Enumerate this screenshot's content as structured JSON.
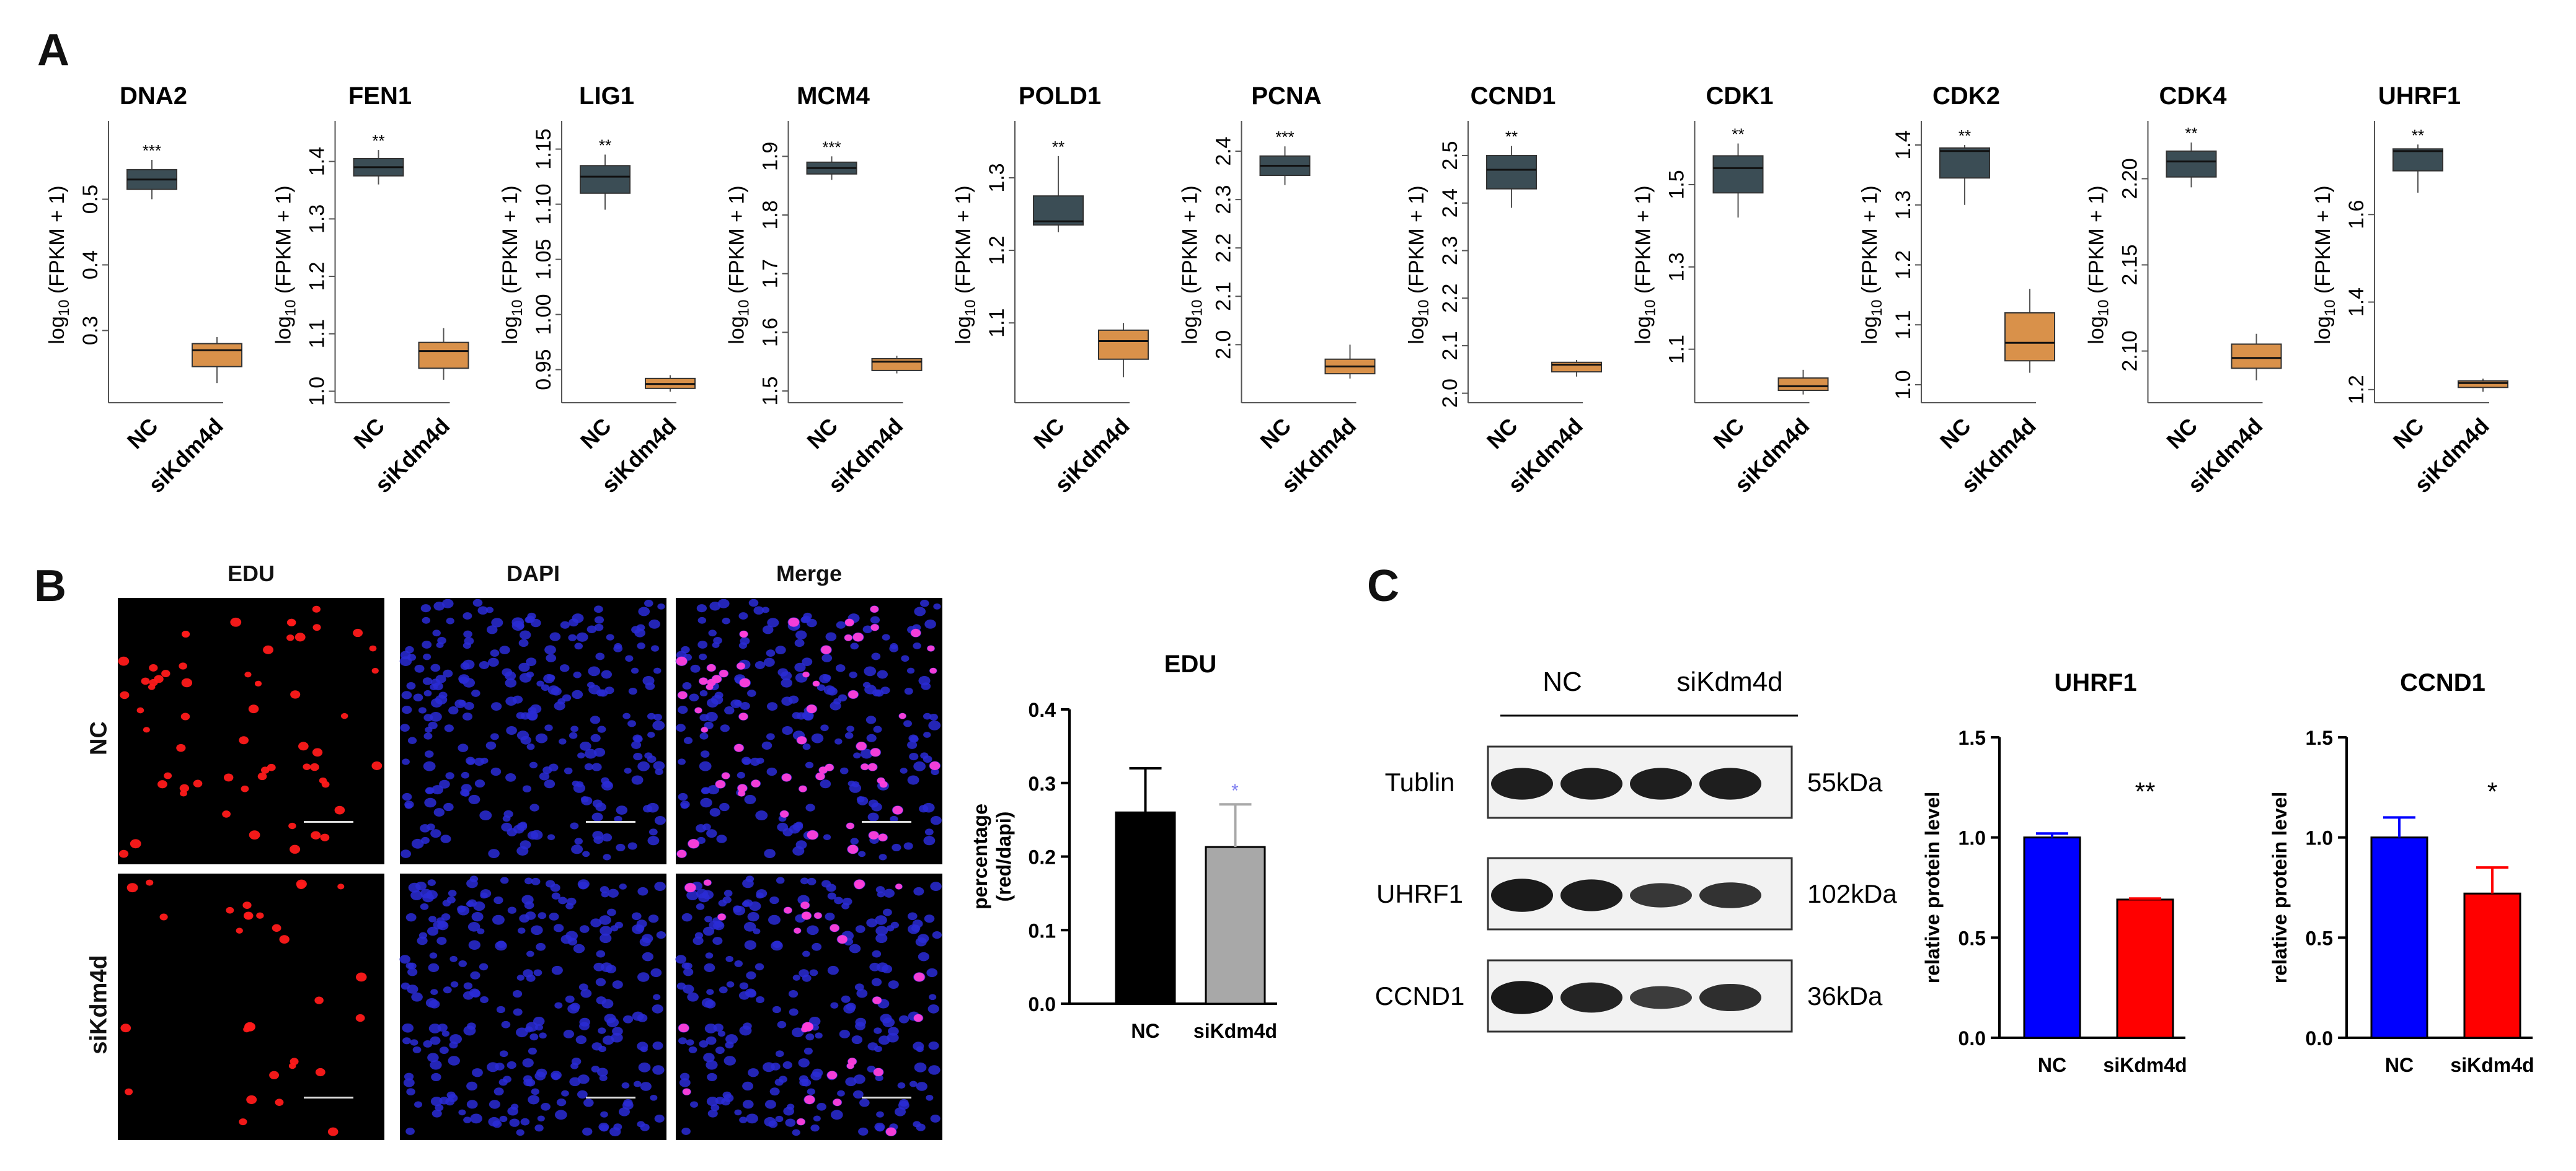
{
  "panels": {
    "a": "A",
    "b": "B",
    "c": "C"
  },
  "panelA": {
    "ylabel_prefix": "log",
    "ylabel_sub": "10",
    "ylabel_suffix": "(FPKM + 1)",
    "groups": [
      "NC",
      "siKdm4d"
    ],
    "colors": {
      "nc": "#3b4d55",
      "si": "#d9914a"
    },
    "plots": [
      {
        "title": "DNA2",
        "sig": "***",
        "ylim": [
          0.19,
          0.61
        ],
        "ticks": [
          0.3,
          0.4,
          0.5
        ],
        "tick_labels": [
          "0.3",
          "0.4",
          "0.5"
        ],
        "nc": {
          "min": 0.5,
          "q1": 0.515,
          "med": 0.53,
          "q3": 0.545,
          "max": 0.56
        },
        "si": {
          "min": 0.22,
          "q1": 0.245,
          "med": 0.27,
          "q3": 0.28,
          "max": 0.29
        }
      },
      {
        "title": "FEN1",
        "sig": "**",
        "ylim": [
          0.98,
          1.46
        ],
        "ticks": [
          1.0,
          1.1,
          1.2,
          1.3,
          1.4
        ],
        "tick_labels": [
          "1.0",
          "1.1",
          "1.2",
          "1.3",
          "1.4"
        ],
        "nc": {
          "min": 1.36,
          "q1": 1.375,
          "med": 1.39,
          "q3": 1.405,
          "max": 1.42
        },
        "si": {
          "min": 1.02,
          "q1": 1.04,
          "med": 1.07,
          "q3": 1.085,
          "max": 1.11
        }
      },
      {
        "title": "LIG1",
        "sig": "**",
        "ylim": [
          0.92,
          1.17
        ],
        "ticks": [
          0.95,
          1.0,
          1.05,
          1.1,
          1.15
        ],
        "tick_labels": [
          "0.95",
          "1.00",
          "1.05",
          "1.10",
          "1.15"
        ],
        "nc": {
          "min": 1.095,
          "q1": 1.11,
          "med": 1.125,
          "q3": 1.135,
          "max": 1.145
        },
        "si": {
          "min": 0.93,
          "q1": 0.933,
          "med": 0.937,
          "q3": 0.942,
          "max": 0.945
        }
      },
      {
        "title": "MCM4",
        "sig": "***",
        "ylim": [
          1.48,
          1.95
        ],
        "ticks": [
          1.5,
          1.6,
          1.7,
          1.8,
          1.9
        ],
        "tick_labels": [
          "1.5",
          "1.6",
          "1.7",
          "1.8",
          "1.9"
        ],
        "nc": {
          "min": 1.86,
          "q1": 1.87,
          "med": 1.88,
          "q3": 1.89,
          "max": 1.9
        },
        "si": {
          "min": 1.53,
          "q1": 1.535,
          "med": 1.55,
          "q3": 1.555,
          "max": 1.56
        }
      },
      {
        "title": "POLD1",
        "sig": "**",
        "ylim": [
          0.99,
          1.37
        ],
        "ticks": [
          1.1,
          1.2,
          1.3
        ],
        "tick_labels": [
          "1.1",
          "1.2",
          "1.3"
        ],
        "nc": {
          "min": 1.225,
          "q1": 1.235,
          "med": 1.24,
          "q3": 1.275,
          "max": 1.33
        },
        "si": {
          "min": 1.025,
          "q1": 1.05,
          "med": 1.075,
          "q3": 1.09,
          "max": 1.1
        }
      },
      {
        "title": "PCNA",
        "sig": "***",
        "ylim": [
          1.88,
          2.45
        ],
        "ticks": [
          2.0,
          2.1,
          2.2,
          2.3,
          2.4
        ],
        "tick_labels": [
          "2.0",
          "2.1",
          "2.2",
          "2.3",
          "2.4"
        ],
        "nc": {
          "min": 2.33,
          "q1": 2.35,
          "med": 2.37,
          "q3": 2.39,
          "max": 2.41
        },
        "si": {
          "min": 1.93,
          "q1": 1.94,
          "med": 1.955,
          "q3": 1.97,
          "max": 2.0
        }
      },
      {
        "title": "CCND1",
        "sig": "**",
        "ylim": [
          1.98,
          2.56
        ],
        "ticks": [
          2.0,
          2.1,
          2.2,
          2.3,
          2.4,
          2.5
        ],
        "tick_labels": [
          "2.0",
          "2.1",
          "2.2",
          "2.3",
          "2.4",
          "2.5"
        ],
        "nc": {
          "min": 2.39,
          "q1": 2.43,
          "med": 2.47,
          "q3": 2.5,
          "max": 2.52
        },
        "si": {
          "min": 2.035,
          "q1": 2.045,
          "med": 2.06,
          "q3": 2.065,
          "max": 2.07
        }
      },
      {
        "title": "CDK1",
        "sig": "**",
        "ylim": [
          0.97,
          1.64
        ],
        "ticks": [
          1.1,
          1.3,
          1.5
        ],
        "tick_labels": [
          "1.1",
          "1.3",
          "1.5"
        ],
        "nc": {
          "min": 1.42,
          "q1": 1.48,
          "med": 1.54,
          "q3": 1.57,
          "max": 1.6
        },
        "si": {
          "min": 0.99,
          "q1": 1.0,
          "med": 1.01,
          "q3": 1.03,
          "max": 1.05
        }
      },
      {
        "title": "CDK2",
        "sig": "**",
        "ylim": [
          0.97,
          1.43
        ],
        "ticks": [
          1.0,
          1.1,
          1.2,
          1.3,
          1.4
        ],
        "tick_labels": [
          "1.0",
          "1.1",
          "1.2",
          "1.3",
          "1.4"
        ],
        "nc": {
          "min": 1.3,
          "q1": 1.345,
          "med": 1.39,
          "q3": 1.395,
          "max": 1.4
        },
        "si": {
          "min": 1.02,
          "q1": 1.04,
          "med": 1.07,
          "q3": 1.12,
          "max": 1.16
        }
      },
      {
        "title": "CDK4",
        "sig": "**",
        "ylim": [
          2.07,
          2.23
        ],
        "ticks": [
          2.1,
          2.15,
          2.2
        ],
        "tick_labels": [
          "2.10",
          "2.15",
          "2.20"
        ],
        "nc": {
          "min": 2.195,
          "q1": 2.201,
          "med": 2.21,
          "q3": 2.216,
          "max": 2.221
        },
        "si": {
          "min": 2.083,
          "q1": 2.09,
          "med": 2.096,
          "q3": 2.104,
          "max": 2.11
        }
      },
      {
        "title": "UHRF1",
        "sig": "**",
        "ylim": [
          1.17,
          1.8
        ],
        "ticks": [
          1.2,
          1.4,
          1.6
        ],
        "tick_labels": [
          "1.2",
          "1.4",
          "1.6"
        ],
        "nc": {
          "min": 1.65,
          "q1": 1.7,
          "med": 1.745,
          "q3": 1.75,
          "max": 1.76
        },
        "si": {
          "min": 1.195,
          "q1": 1.205,
          "med": 1.215,
          "q3": 1.22,
          "max": 1.225
        }
      }
    ]
  },
  "panelB": {
    "columns": [
      "EDU",
      "DAPI",
      "Merge"
    ],
    "rows": [
      "NC",
      "siKdm4d"
    ],
    "bar_chart": {
      "title": "EDU",
      "ylabel_line1": "percentage",
      "ylabel_line2": "(red/dapi)",
      "categories": [
        "NC",
        "siKdm4d"
      ],
      "values": [
        0.26,
        0.213
      ],
      "errors": [
        0.06,
        0.058
      ],
      "colors": [
        "#000000",
        "#a8a8a8"
      ],
      "ylim": [
        0,
        0.4
      ],
      "ticks": [
        0.0,
        0.1,
        0.2,
        0.3,
        0.4
      ],
      "tick_labels": [
        "0.0",
        "0.1",
        "0.2",
        "0.3",
        "0.4"
      ],
      "sig": "*"
    }
  },
  "panelC": {
    "blot_header": {
      "nc": "NC",
      "si": "siKdm4d"
    },
    "blots": [
      {
        "protein": "Tublin",
        "size": "55kDa"
      },
      {
        "protein": "UHRF1",
        "size": "102kDa"
      },
      {
        "protein": "CCND1",
        "size": "36kDa"
      }
    ],
    "bar_charts": [
      {
        "title": "UHRF1",
        "ylabel": "relative protein level",
        "categories": [
          "NC",
          "siKdm4d"
        ],
        "values": [
          1.0,
          0.69
        ],
        "errors": [
          0.02,
          0.005
        ],
        "colors": [
          "#0000ff",
          "#ff0000"
        ],
        "ylim": [
          0,
          1.5
        ],
        "ticks": [
          0.0,
          0.5,
          1.0,
          1.5
        ],
        "tick_labels": [
          "0.0",
          "0.5",
          "1.0",
          "1.5"
        ],
        "sig": "**"
      },
      {
        "title": "CCND1",
        "ylabel": "relative protein level",
        "categories": [
          "NC",
          "siKdm4d"
        ],
        "values": [
          1.0,
          0.72
        ],
        "errors": [
          0.1,
          0.13
        ],
        "colors": [
          "#0000ff",
          "#ff0000"
        ],
        "ylim": [
          0,
          1.5
        ],
        "ticks": [
          0.0,
          0.5,
          1.0,
          1.5
        ],
        "tick_labels": [
          "0.0",
          "0.5",
          "1.0",
          "1.5"
        ],
        "sig": "*"
      }
    ]
  }
}
